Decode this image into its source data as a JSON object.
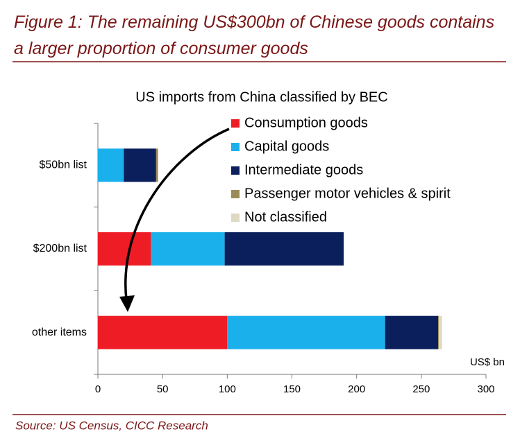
{
  "header": {
    "title_line1": "Figure 1: The remaining US$300bn of Chinese goods contains",
    "title_line2": "a larger proportion of consumer goods"
  },
  "chart_data": {
    "type": "stacked-bar-horizontal",
    "title": "US imports from China classified by BEC",
    "x_label": "US$ bn",
    "categories": [
      "$50bn list",
      "$200bn list",
      "other items"
    ],
    "series": [
      {
        "name": "Consumption goods",
        "color": "#ee1c25",
        "values": [
          0,
          41,
          100
        ]
      },
      {
        "name": "Capital goods",
        "color": "#1ab0ec",
        "values": [
          20,
          57,
          122
        ]
      },
      {
        "name": "Intermediate goods",
        "color": "#0b1f5c",
        "values": [
          25,
          92,
          41
        ]
      },
      {
        "name": "Passenger motor vehicles & spirit",
        "color": "#9b8b57",
        "values": [
          1.5,
          0,
          0.5
        ]
      },
      {
        "name": "Not classified",
        "color": "#ddd9c3",
        "values": [
          0,
          0,
          2.5
        ]
      }
    ],
    "xlim": [
      0,
      300
    ],
    "xticks": [
      0,
      50,
      100,
      150,
      200,
      250,
      300
    ]
  },
  "footer": {
    "source": "Source: US Census, CICC Research"
  }
}
